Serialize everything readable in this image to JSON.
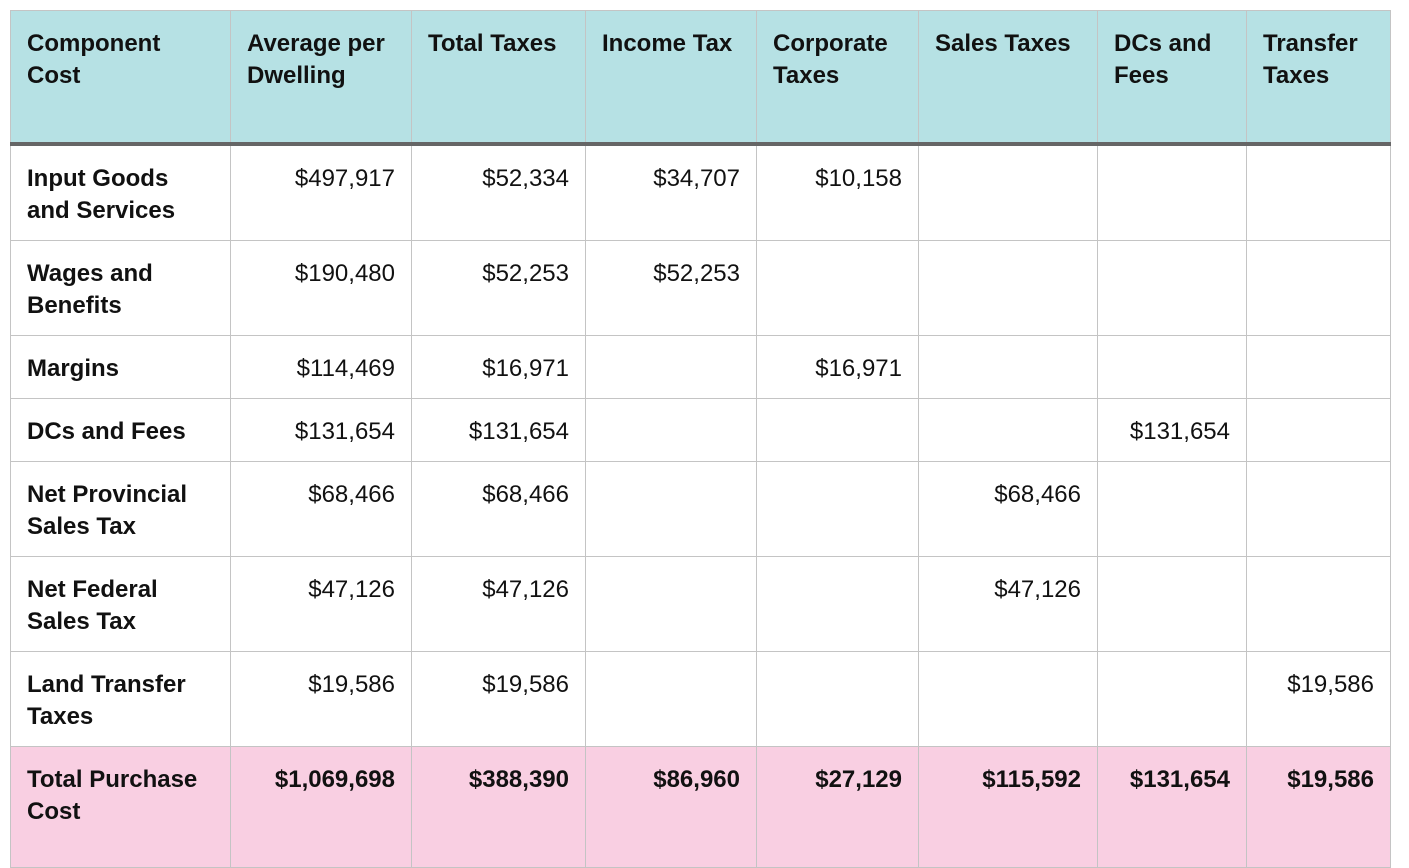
{
  "table": {
    "headers": [
      "Component Cost",
      "Average per Dwelling",
      "Total Taxes",
      "Income Tax",
      "Corporate Taxes",
      "Sales Taxes",
      "DCs and Fees",
      "Transfer Taxes"
    ],
    "rows": [
      [
        "Input Goods and Services",
        "$497,917",
        "$52,334",
        "$34,707",
        "$10,158",
        "",
        "",
        ""
      ],
      [
        "Wages and Benefits",
        "$190,480",
        "$52,253",
        "$52,253",
        "",
        "",
        "",
        ""
      ],
      [
        "Margins",
        "$114,469",
        "$16,971",
        "",
        "$16,971",
        "",
        "",
        ""
      ],
      [
        "DCs and Fees",
        "$131,654",
        "$131,654",
        "",
        "",
        "",
        "$131,654",
        ""
      ],
      [
        "Net Provincial Sales Tax",
        "$68,466",
        "$68,466",
        "",
        "",
        "$68,466",
        "",
        ""
      ],
      [
        "Net Federal Sales Tax",
        "$47,126",
        "$47,126",
        "",
        "",
        "$47,126",
        "",
        ""
      ],
      [
        "Land Transfer Taxes",
        "$19,586",
        "$19,586",
        "",
        "",
        "",
        "",
        "$19,586"
      ]
    ],
    "total": [
      "Total Purchase Cost",
      "$1,069,698",
      "$388,390",
      "$86,960",
      "$27,129",
      "$115,592",
      "$131,654",
      "$19,586"
    ]
  },
  "colors": {
    "header_bg": "#b6e1e4",
    "total_bg": "#f9cfe2",
    "grid": "#c4c4c4",
    "header_rule": "#666666"
  }
}
